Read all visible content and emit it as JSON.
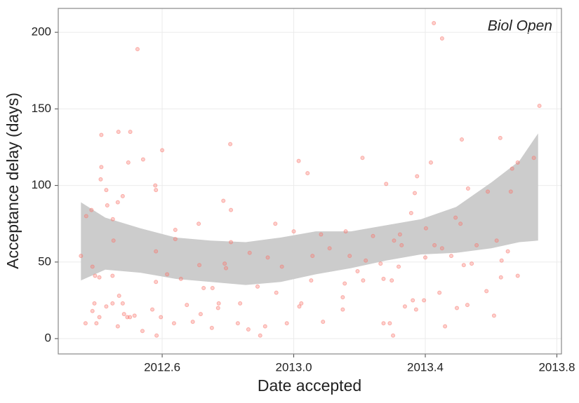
{
  "chart_data": {
    "type": "scatter",
    "annotation": "Biol Open",
    "x_label": "Date accepted",
    "y_label": "Acceptance delay (days)",
    "color": "#f8766d",
    "point_opacity": 0.35,
    "grid": true,
    "xlim": [
      2012.284,
      2013.814
    ],
    "ylim": [
      -10,
      215.6
    ],
    "xticks": [
      2012.6,
      {
        "value": 2013,
        "label": "2013.0"
      },
      2013.4,
      2013.8
    ],
    "yticks": [
      0,
      50,
      100,
      150,
      200
    ],
    "x": [
      2012.353,
      2012.367,
      2012.369,
      2012.385,
      2012.388,
      2012.388,
      2012.394,
      2012.396,
      2012.4,
      2012.409,
      2012.413,
      2012.415,
      2012.415,
      2012.409,
      2012.43,
      2012.433,
      2012.43,
      2012.449,
      2012.449,
      2012.45,
      2012.452,
      2012.465,
      2012.465,
      2012.467,
      2012.469,
      2012.48,
      2012.48,
      2012.484,
      2012.494,
      2012.497,
      2012.502,
      2012.503,
      2012.516,
      2012.525,
      2012.54,
      2012.542,
      2012.57,
      2012.579,
      2012.581,
      2012.581,
      2012.581,
      2012.583,
      2012.596,
      2012.6,
      2012.615,
      2012.636,
      2012.64,
      2012.64,
      2012.657,
      2012.675,
      2012.693,
      2012.711,
      2012.713,
      2012.717,
      2012.726,
      2012.751,
      2012.753,
      2012.77,
      2012.772,
      2012.786,
      2012.79,
      2012.794,
      2012.807,
      2012.809,
      2012.809,
      2012.83,
      2012.837,
      2012.862,
      2012.866,
      2012.89,
      2012.898,
      2012.913,
      2012.921,
      2012.944,
      2012.947,
      2012.964,
      2012.979,
      2013.0,
      2013.015,
      2013.017,
      2013.023,
      2013.042,
      2013.053,
      2013.057,
      2013.083,
      2013.089,
      2013.109,
      2013.149,
      2013.149,
      2013.155,
      2013.158,
      2013.17,
      2013.194,
      2013.209,
      2013.211,
      2013.219,
      2013.241,
      2013.264,
      2013.281,
      2013.273,
      2013.273,
      2013.292,
      2013.298,
      2013.302,
      2013.305,
      2013.319,
      2013.323,
      2013.328,
      2013.338,
      2013.357,
      2013.362,
      2013.368,
      2013.375,
      2013.372,
      2013.396,
      2013.402,
      2013.4,
      2013.417,
      2013.426,
      2013.428,
      2013.443,
      2013.451,
      2013.451,
      2013.46,
      2013.479,
      2013.492,
      2013.496,
      2013.507,
      2013.511,
      2013.517,
      2013.53,
      2013.528,
      2013.541,
      2013.556,
      2013.586,
      2013.59,
      2013.609,
      2013.617,
      2013.628,
      2013.63,
      2013.632,
      2013.651,
      2013.66,
      2013.664,
      2013.681,
      2013.681,
      2013.73,
      2013.747
    ],
    "values": [
      54,
      10,
      80,
      84,
      47,
      18,
      23,
      41,
      10,
      14,
      104,
      133,
      112,
      40,
      97,
      87,
      21,
      23,
      41,
      78,
      64,
      8,
      89,
      135,
      28,
      93,
      23,
      16,
      14,
      115,
      14,
      135,
      15,
      189,
      5,
      117,
      19,
      100,
      97,
      57,
      37,
      2,
      14,
      123,
      42,
      10,
      71,
      65,
      39,
      22,
      11,
      75,
      48,
      16,
      33,
      7,
      33,
      20,
      23,
      90,
      49,
      46,
      127,
      84,
      63,
      10,
      23,
      6,
      56,
      34,
      2,
      8,
      53,
      75,
      30,
      47,
      10,
      70,
      116,
      21,
      23,
      108,
      38,
      54,
      68,
      11,
      59,
      27,
      19,
      36,
      70,
      54,
      44,
      118,
      38,
      51,
      67,
      49,
      101,
      39,
      10,
      10,
      38,
      2,
      64,
      47,
      68,
      61,
      21,
      82,
      25,
      95,
      106,
      19,
      25,
      72,
      53,
      115,
      206,
      61,
      30,
      196,
      59,
      8,
      54,
      79,
      20,
      75,
      130,
      48,
      98,
      22,
      49,
      61,
      31,
      96,
      15,
      64,
      131,
      40,
      51,
      57,
      96,
      111,
      115,
      41,
      118,
      152
    ],
    "band": {
      "color": "#cccccc",
      "x": [
        2012.353,
        2012.427,
        2012.534,
        2012.641,
        2012.747,
        2012.854,
        2012.961,
        2013.067,
        2013.174,
        2013.281,
        2013.387,
        2013.494,
        2013.601,
        2013.686,
        2013.743
      ],
      "lower": [
        38,
        45,
        43,
        39,
        37,
        35,
        37,
        42,
        46,
        51,
        55,
        56,
        59,
        63,
        64
      ],
      "upper": [
        89,
        79,
        72,
        66,
        64,
        63,
        66,
        70,
        70,
        74,
        78,
        86,
        102,
        116,
        134
      ]
    }
  }
}
